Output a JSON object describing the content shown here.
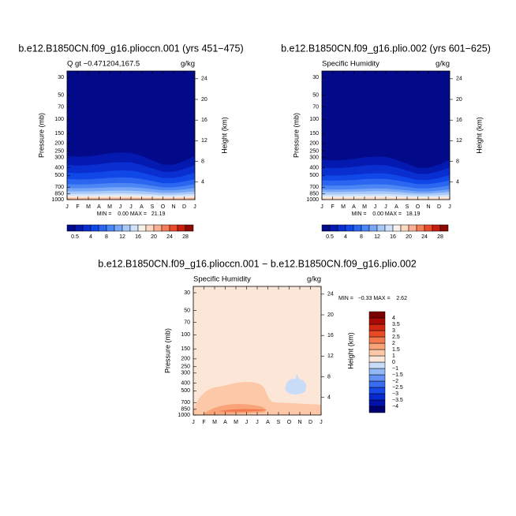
{
  "chart_data": [
    {
      "type": "contour",
      "title": "b.e12.B1850CN.f09_g16.plioccn.001 (yrs 451−475)",
      "left_string": "Q gt −0.471204,167.5",
      "right_string": "g/kg",
      "ylabel": "Pressure (mb)",
      "y2label": "Height (km)",
      "log_y": true,
      "categories": [
        "J",
        "F",
        "M",
        "A",
        "M",
        "J",
        "J",
        "A",
        "S",
        "O",
        "N",
        "D",
        "J"
      ],
      "ylim": [
        1000,
        25
      ],
      "yticks": [
        30,
        50,
        70,
        100,
        150,
        200,
        250,
        300,
        400,
        500,
        700,
        850,
        1000
      ],
      "y2lim": [
        0.6,
        25.5
      ],
      "y2ticks": [
        4,
        8,
        12,
        16,
        20,
        24
      ],
      "min_max": "MIN =    0.00 MAX =   21.19",
      "colorbar": {
        "orientation": "horizontal",
        "colors": [
          "#020a8a",
          "#0419b0",
          "#0a2fd0",
          "#1048e8",
          "#2a66f0",
          "#4c86f4",
          "#78a6f6",
          "#a8c8f8",
          "#d0e2fa",
          "#f6efea",
          "#fcd8c0",
          "#f8b090",
          "#f47c58",
          "#ea4a2c",
          "#c81e10",
          "#8c0a04"
        ],
        "ticks": [
          0.5,
          4,
          8,
          12,
          16,
          20,
          24,
          28
        ]
      }
    },
    {
      "type": "contour",
      "title": "b.e12.B1850CN.f09_g16.plio.002 (yrs 601−625)",
      "left_string": "Specific Humidity",
      "right_string": "g/kg",
      "ylabel": "Pressure (mb)",
      "y2label": "Height (km)",
      "log_y": true,
      "categories": [
        "J",
        "F",
        "M",
        "A",
        "M",
        "J",
        "J",
        "A",
        "S",
        "O",
        "N",
        "D",
        "J"
      ],
      "ylim": [
        1000,
        25
      ],
      "yticks": [
        30,
        50,
        70,
        100,
        150,
        200,
        250,
        300,
        400,
        500,
        700,
        850,
        1000
      ],
      "y2lim": [
        0.6,
        25.5
      ],
      "y2ticks": [
        4,
        8,
        12,
        16,
        20,
        24
      ],
      "min_max": "MIN =    0.00 MAX =   18.19",
      "colorbar": {
        "orientation": "horizontal",
        "colors": [
          "#020a8a",
          "#0419b0",
          "#0a2fd0",
          "#1048e8",
          "#2a66f0",
          "#4c86f4",
          "#78a6f6",
          "#a8c8f8",
          "#d0e2fa",
          "#f6efea",
          "#fcd8c0",
          "#f8b090",
          "#f47c58",
          "#ea4a2c",
          "#c81e10",
          "#8c0a04"
        ],
        "ticks": [
          0.5,
          4,
          8,
          12,
          16,
          20,
          24,
          28
        ]
      }
    },
    {
      "type": "contour",
      "title": "b.e12.B1850CN.f09_g16.plioccn.001 − b.e12.B1850CN.f09_g16.plio.002",
      "left_string": "Specific Humidity",
      "right_string": "g/kg",
      "ylabel": "Pressure (mb)",
      "y2label": "Height (km)",
      "log_y": true,
      "categories": [
        "J",
        "F",
        "M",
        "A",
        "M",
        "J",
        "J",
        "A",
        "S",
        "O",
        "N",
        "D",
        "J"
      ],
      "ylim": [
        1000,
        25
      ],
      "yticks": [
        30,
        50,
        70,
        100,
        150,
        200,
        250,
        300,
        400,
        500,
        700,
        850,
        1000
      ],
      "y2lim": [
        0.6,
        25.5
      ],
      "y2ticks": [
        4,
        8,
        12,
        16,
        20,
        24
      ],
      "min_max": "MIN =   −0.33 MAX =    2.62",
      "colorbar": {
        "orientation": "vertical",
        "colors": [
          "#00006e",
          "#0010a8",
          "#0828d0",
          "#1848e8",
          "#3a6cf0",
          "#6492f4",
          "#94b8f6",
          "#c8dcf8",
          "#fbe6d8",
          "#fcc8a8",
          "#f8a478",
          "#f27a4e",
          "#e84a26",
          "#d02810",
          "#a80c04",
          "#7a0000"
        ],
        "ticks": [
          {
            "value": -4,
            "label": "−4"
          },
          {
            "value": -3.5,
            "label": "−3.5"
          },
          {
            "value": -3,
            "label": "−3"
          },
          {
            "value": -2.5,
            "label": "−2.5"
          },
          {
            "value": -2,
            "label": "−2"
          },
          {
            "value": -1.5,
            "label": "−1.5"
          },
          {
            "value": -1,
            "label": "−1"
          },
          0,
          1,
          1.5,
          2,
          2.5,
          3,
          3.5,
          4
        ]
      }
    }
  ]
}
